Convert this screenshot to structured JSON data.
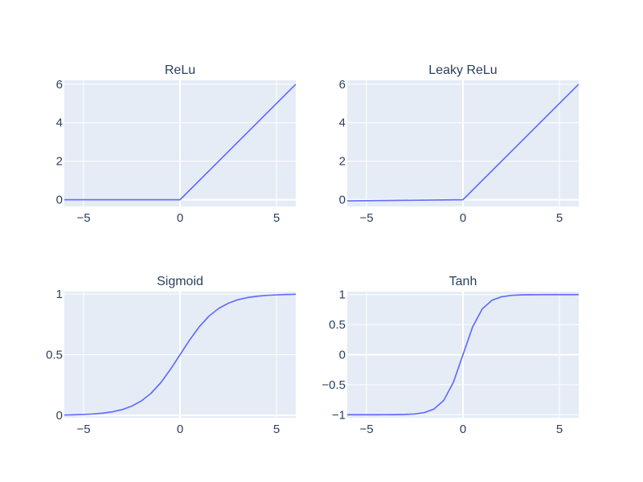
{
  "chart_data": [
    {
      "type": "line",
      "title": "ReLu",
      "xlabel": "",
      "ylabel": "",
      "xlim": [
        -6,
        6
      ],
      "ylim": [
        -0.35,
        6.2
      ],
      "x_ticks": [
        -5,
        0,
        5
      ],
      "x_tick_labels": [
        "−5",
        "0",
        "5"
      ],
      "y_ticks": [
        0,
        2,
        4,
        6
      ],
      "y_tick_labels": [
        "0",
        "2",
        "4",
        "6"
      ],
      "series": [
        {
          "color": "#636efa",
          "x": [
            -6,
            0,
            6
          ],
          "y": [
            0,
            0,
            6
          ]
        }
      ],
      "grid": true
    },
    {
      "type": "line",
      "title": "Leaky ReLu",
      "xlabel": "",
      "ylabel": "",
      "xlim": [
        -6,
        6
      ],
      "ylim": [
        -0.35,
        6.2
      ],
      "x_ticks": [
        -5,
        0,
        5
      ],
      "x_tick_labels": [
        "−5",
        "0",
        "5"
      ],
      "y_ticks": [
        0,
        2,
        4,
        6
      ],
      "y_tick_labels": [
        "0",
        "2",
        "4",
        "6"
      ],
      "series": [
        {
          "color": "#636efa",
          "x": [
            -6,
            0,
            6
          ],
          "y": [
            -0.06,
            0,
            6
          ]
        }
      ],
      "grid": true
    },
    {
      "type": "line",
      "title": "Sigmoid",
      "xlabel": "",
      "ylabel": "",
      "xlim": [
        -6,
        6
      ],
      "ylim": [
        -0.02,
        1.02
      ],
      "x_ticks": [
        -5,
        0,
        5
      ],
      "x_tick_labels": [
        "−5",
        "0",
        "5"
      ],
      "y_ticks": [
        0,
        0.5,
        1
      ],
      "y_tick_labels": [
        "0",
        "0.5",
        "1"
      ],
      "series": [
        {
          "color": "#636efa",
          "x": [
            -6,
            -5.5,
            -5,
            -4.5,
            -4,
            -3.5,
            -3,
            -2.5,
            -2,
            -1.5,
            -1,
            -0.5,
            0,
            0.5,
            1,
            1.5,
            2,
            2.5,
            3,
            3.5,
            4,
            4.5,
            5,
            5.5,
            6
          ],
          "y": [
            0.002,
            0.004,
            0.007,
            0.011,
            0.018,
            0.029,
            0.047,
            0.076,
            0.119,
            0.182,
            0.269,
            0.378,
            0.5,
            0.622,
            0.731,
            0.818,
            0.881,
            0.924,
            0.953,
            0.971,
            0.982,
            0.989,
            0.993,
            0.996,
            0.998
          ]
        }
      ],
      "grid": true
    },
    {
      "type": "line",
      "title": "Tanh",
      "xlabel": "",
      "ylabel": "",
      "xlim": [
        -6,
        6
      ],
      "ylim": [
        -1.05,
        1.05
      ],
      "x_ticks": [
        -5,
        0,
        5
      ],
      "x_tick_labels": [
        "−5",
        "0",
        "5"
      ],
      "y_ticks": [
        -1,
        -0.5,
        0,
        0.5,
        1
      ],
      "y_tick_labels": [
        "−1",
        "−0.5",
        "0",
        "0.5",
        "1"
      ],
      "series": [
        {
          "color": "#636efa",
          "x": [
            -6,
            -5.5,
            -5,
            -4.5,
            -4,
            -3.5,
            -3,
            -2.5,
            -2,
            -1.5,
            -1,
            -0.5,
            0,
            0.5,
            1,
            1.5,
            2,
            2.5,
            3,
            3.5,
            4,
            4.5,
            5,
            5.5,
            6
          ],
          "y": [
            -1,
            -1,
            -1,
            -1,
            -0.999,
            -0.998,
            -0.995,
            -0.987,
            -0.964,
            -0.905,
            -0.762,
            -0.462,
            0,
            0.462,
            0.762,
            0.905,
            0.964,
            0.987,
            0.995,
            0.998,
            0.999,
            1,
            1,
            1,
            1
          ]
        }
      ],
      "grid": true
    }
  ],
  "colors": {
    "plot_background": "#e5ecf6",
    "grid": "#ffffff",
    "text": "#2a3f5f",
    "line": "#636efa"
  }
}
